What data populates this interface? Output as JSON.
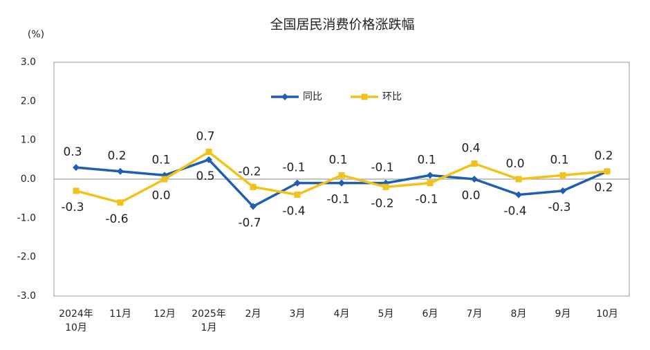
{
  "chart_data": {
    "type": "line",
    "title": "全国居民消费价格涨跌幅",
    "y_unit": "(%)",
    "categories": [
      "2024年\n10月",
      "11月",
      "12月",
      "2025年\n1月",
      "2月",
      "3月",
      "4月",
      "5月",
      "6月",
      "7月",
      "8月",
      "9月",
      "10月"
    ],
    "series": [
      {
        "name": "同比",
        "color": "#1f5fae",
        "marker": "diamond",
        "values": [
          0.3,
          0.2,
          0.1,
          0.5,
          -0.7,
          -0.1,
          -0.1,
          -0.1,
          0.1,
          0.0,
          -0.4,
          -0.3,
          0.2
        ],
        "value_labels": [
          "0.3",
          "0.2",
          "0.1",
          "0.5",
          "-0.7",
          "-0.1",
          "-0.1",
          "-0.1",
          "0.1",
          "0.0",
          "-0.4",
          "-0.3",
          "0.2"
        ]
      },
      {
        "name": "环比",
        "color": "#f2c21b",
        "marker": "square",
        "values": [
          -0.3,
          -0.6,
          0.0,
          0.7,
          -0.2,
          -0.4,
          0.1,
          -0.2,
          -0.1,
          0.4,
          0.0,
          0.1,
          0.2
        ],
        "value_labels": [
          "-0.3",
          "-0.6",
          "0.0",
          "0.7",
          "-0.2",
          "-0.4",
          "0.1",
          "-0.2",
          "-0.1",
          "0.4",
          "0.0",
          "0.1",
          "0.2"
        ]
      }
    ],
    "ylim": [
      -3,
      3
    ],
    "yticks": [
      {
        "value": -3,
        "label": "-3.0"
      },
      {
        "value": -2,
        "label": "-2.0"
      },
      {
        "value": -1,
        "label": "-1.0"
      },
      {
        "value": 0,
        "label": "0.0"
      },
      {
        "value": 1,
        "label": "1.0"
      },
      {
        "value": 2,
        "label": "2.0"
      },
      {
        "value": 3,
        "label": "3.0"
      }
    ],
    "zero_line": true,
    "legend": "top-center"
  }
}
